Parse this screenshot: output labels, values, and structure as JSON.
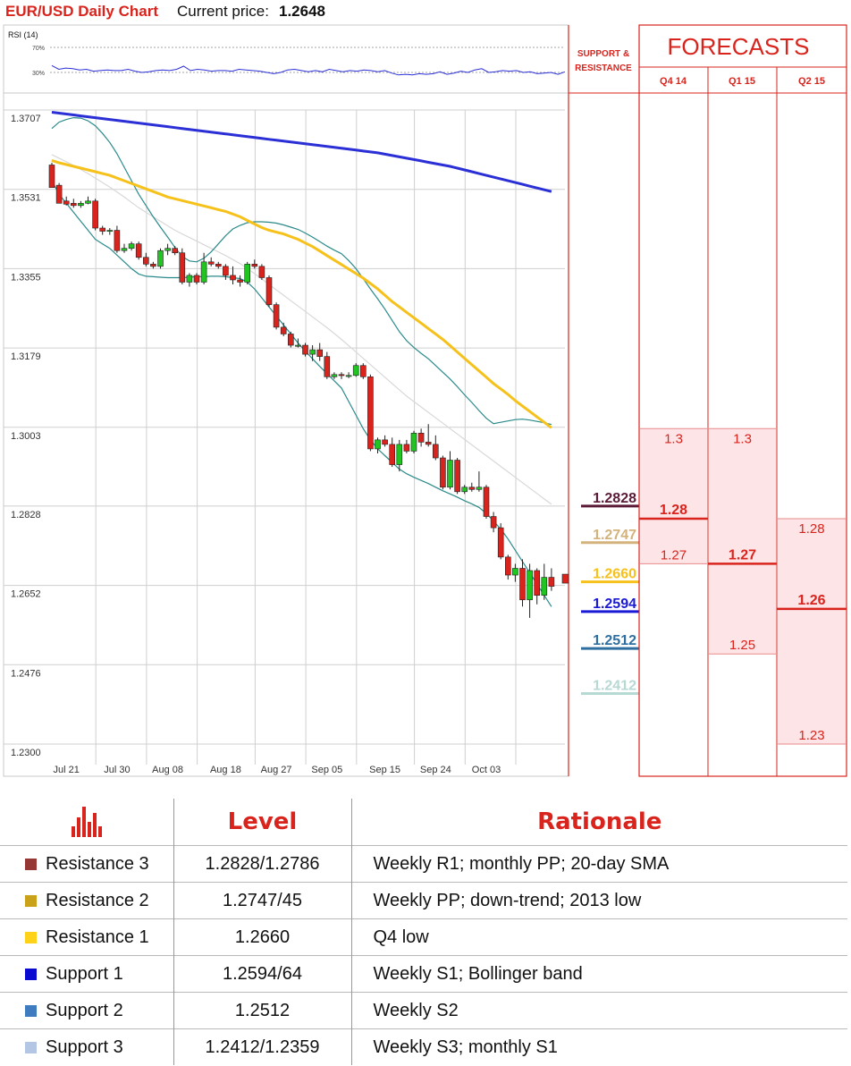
{
  "header": {
    "title": "EUR/USD Daily Chart",
    "price_label": "Current price:",
    "price_value": "1.2648"
  },
  "colors": {
    "accent": "#d9241d",
    "sma200": "#2b2fd6",
    "sma50": "#f5c11a",
    "bollinger": "#2a8a8a",
    "sma20": "#d8d8d8",
    "bull_candle": "#22c422",
    "bear_candle": "#d9241d",
    "forecast_fill": "#fde4e6"
  },
  "chart_data": [
    {
      "type": "line",
      "title": "RSI (14)",
      "ylim": [
        0,
        100
      ],
      "ref_lines": [
        70,
        30
      ],
      "ref_labels": [
        "70%",
        "30%"
      ],
      "series": [
        {
          "values": [
            41,
            35,
            37,
            36,
            34,
            35,
            32,
            33,
            34,
            33,
            33,
            35,
            32,
            30,
            31,
            33,
            34,
            33,
            35,
            40,
            33,
            35,
            34,
            32,
            33,
            33,
            32,
            35,
            34,
            33,
            32,
            30,
            28,
            30,
            34,
            35,
            33,
            31,
            33,
            31,
            35,
            33,
            31,
            33,
            32,
            34,
            33,
            31,
            33,
            29,
            26,
            27,
            26,
            28,
            27,
            28,
            31,
            27,
            29,
            32,
            30,
            34,
            36,
            30,
            31,
            33,
            32,
            33,
            30,
            31,
            28,
            29,
            30,
            27,
            31
          ]
        }
      ]
    },
    {
      "type": "candlestick",
      "ylim": [
        1.23,
        1.3707
      ],
      "y_ticks": [
        "1.3707",
        "1.3531",
        "1.3355",
        "1.3179",
        "1.3003",
        "1.2828",
        "1.2652",
        "1.2476",
        "1.2300"
      ],
      "x_ticks": [
        "Jul 21",
        "Jul 30",
        "Aug 08",
        "Aug 18",
        "Aug 27",
        "Sep 05",
        "Sep 15",
        "Sep 24",
        "Oct 03"
      ],
      "x_tick_index": [
        2,
        9,
        16,
        24,
        31,
        38,
        46,
        53,
        60
      ],
      "candles": [
        [
          1.3585,
          1.359,
          1.354,
          1.3535
        ],
        [
          1.354,
          1.3545,
          1.3505,
          1.35
        ],
        [
          1.3505,
          1.3515,
          1.3495,
          1.3498
        ],
        [
          1.35,
          1.351,
          1.349,
          1.3495
        ],
        [
          1.3495,
          1.3505,
          1.349,
          1.35
        ],
        [
          1.35,
          1.3515,
          1.3498,
          1.3505
        ],
        [
          1.3505,
          1.351,
          1.344,
          1.3445
        ],
        [
          1.3445,
          1.345,
          1.343,
          1.3438
        ],
        [
          1.3438,
          1.3445,
          1.343,
          1.344
        ],
        [
          1.344,
          1.345,
          1.339,
          1.3395
        ],
        [
          1.3395,
          1.341,
          1.339,
          1.34
        ],
        [
          1.34,
          1.3415,
          1.3395,
          1.341
        ],
        [
          1.341,
          1.3415,
          1.3375,
          1.338
        ],
        [
          1.338,
          1.339,
          1.336,
          1.3365
        ],
        [
          1.3365,
          1.337,
          1.3355,
          1.336
        ],
        [
          1.336,
          1.34,
          1.3355,
          1.3395
        ],
        [
          1.3395,
          1.341,
          1.3385,
          1.34
        ],
        [
          1.34,
          1.3405,
          1.3385,
          1.339
        ],
        [
          1.339,
          1.34,
          1.332,
          1.3325
        ],
        [
          1.3325,
          1.3345,
          1.3315,
          1.334
        ],
        [
          1.334,
          1.3345,
          1.332,
          1.3325
        ],
        [
          1.3325,
          1.339,
          1.332,
          1.337
        ],
        [
          1.337,
          1.338,
          1.336,
          1.3365
        ],
        [
          1.3365,
          1.337,
          1.3355,
          1.336
        ],
        [
          1.336,
          1.3365,
          1.333,
          1.334
        ],
        [
          1.334,
          1.336,
          1.332,
          1.333
        ],
        [
          1.333,
          1.334,
          1.3315,
          1.3325
        ],
        [
          1.3325,
          1.337,
          1.332,
          1.3365
        ],
        [
          1.3365,
          1.3375,
          1.3355,
          1.336
        ],
        [
          1.336,
          1.3365,
          1.333,
          1.3335
        ],
        [
          1.3335,
          1.334,
          1.327,
          1.3275
        ],
        [
          1.3275,
          1.328,
          1.322,
          1.3225
        ],
        [
          1.3225,
          1.3235,
          1.3205,
          1.321
        ],
        [
          1.321,
          1.3215,
          1.318,
          1.3185
        ],
        [
          1.3185,
          1.32,
          1.318,
          1.3185
        ],
        [
          1.3185,
          1.319,
          1.316,
          1.3165
        ],
        [
          1.3165,
          1.3185,
          1.315,
          1.3175
        ],
        [
          1.3175,
          1.319,
          1.315,
          1.316
        ],
        [
          1.316,
          1.317,
          1.311,
          1.3115
        ],
        [
          1.3115,
          1.3125,
          1.311,
          1.312
        ],
        [
          1.312,
          1.3125,
          1.311,
          1.3118
        ],
        [
          1.3118,
          1.3125,
          1.3112,
          1.3118
        ],
        [
          1.3118,
          1.3145,
          1.3115,
          1.314
        ],
        [
          1.314,
          1.3145,
          1.311,
          1.3115
        ],
        [
          1.3115,
          1.312,
          1.295,
          1.2955
        ],
        [
          1.2955,
          1.298,
          1.2945,
          1.2975
        ],
        [
          1.2975,
          1.2985,
          1.296,
          1.2965
        ],
        [
          1.2965,
          1.298,
          1.2915,
          1.292
        ],
        [
          1.292,
          1.2975,
          1.2905,
          1.2965
        ],
        [
          1.2965,
          1.2975,
          1.2945,
          1.295
        ],
        [
          1.295,
          1.2995,
          1.2945,
          1.299
        ],
        [
          1.299,
          1.3,
          1.296,
          1.297
        ],
        [
          1.297,
          1.301,
          1.296,
          1.2965
        ],
        [
          1.2965,
          1.2985,
          1.293,
          1.2935
        ],
        [
          1.2935,
          1.294,
          1.2865,
          1.287
        ],
        [
          1.287,
          1.295,
          1.2865,
          1.293
        ],
        [
          1.293,
          1.2935,
          1.2855,
          1.286
        ],
        [
          1.286,
          1.2875,
          1.2855,
          1.287
        ],
        [
          1.287,
          1.288,
          1.286,
          1.2865
        ],
        [
          1.2865,
          1.2905,
          1.286,
          1.287
        ],
        [
          1.287,
          1.2875,
          1.28,
          1.2805
        ],
        [
          1.2805,
          1.2815,
          1.277,
          1.278
        ],
        [
          1.278,
          1.279,
          1.271,
          1.2715
        ],
        [
          1.2715,
          1.272,
          1.2665,
          1.2675
        ],
        [
          1.2675,
          1.27,
          1.266,
          1.269
        ],
        [
          1.269,
          1.271,
          1.2605,
          1.262
        ],
        [
          1.262,
          1.27,
          1.258,
          1.2685
        ],
        [
          1.2685,
          1.269,
          1.261,
          1.263
        ],
        [
          1.263,
          1.27,
          1.262,
          1.267
        ],
        [
          1.267,
          1.269,
          1.264,
          1.265
        ]
      ],
      "overlays": {
        "sma200": [
          1.3702,
          1.37,
          1.3698,
          1.3696,
          1.3694,
          1.3692,
          1.369,
          1.3688,
          1.3686,
          1.3684,
          1.3682,
          1.368,
          1.3678,
          1.3676,
          1.3674,
          1.3672,
          1.367,
          1.3668,
          1.3666,
          1.3664,
          1.3662,
          1.366,
          1.3658,
          1.3656,
          1.3654,
          1.3652,
          1.365,
          1.3648,
          1.3646,
          1.3644,
          1.3642,
          1.364,
          1.3638,
          1.3636,
          1.3634,
          1.3632,
          1.363,
          1.3628,
          1.3626,
          1.3624,
          1.3622,
          1.362,
          1.3618,
          1.3616,
          1.3614,
          1.3612,
          1.3609,
          1.3606,
          1.3603,
          1.36,
          1.3597,
          1.3594,
          1.3591,
          1.3588,
          1.3585,
          1.3582,
          1.3578,
          1.3574,
          1.357,
          1.3566,
          1.3562,
          1.3558,
          1.3554,
          1.355,
          1.3546,
          1.3542,
          1.3538,
          1.3534,
          1.353,
          1.3526
        ],
        "sma50": [
          1.3595,
          1.359,
          1.3586,
          1.3582,
          1.3578,
          1.3574,
          1.357,
          1.3566,
          1.3562,
          1.3556,
          1.355,
          1.3544,
          1.3538,
          1.3532,
          1.3526,
          1.352,
          1.3514,
          1.351,
          1.3506,
          1.3502,
          1.3498,
          1.3494,
          1.349,
          1.3486,
          1.3482,
          1.3476,
          1.347,
          1.3462,
          1.3454,
          1.3446,
          1.344,
          1.3436,
          1.3432,
          1.3426,
          1.342,
          1.3412,
          1.3404,
          1.3394,
          1.3384,
          1.3374,
          1.3364,
          1.3354,
          1.3344,
          1.3334,
          1.3322,
          1.331,
          1.3296,
          1.3282,
          1.327,
          1.3258,
          1.3246,
          1.3234,
          1.3222,
          1.321,
          1.3198,
          1.3184,
          1.317,
          1.3156,
          1.3142,
          1.3128,
          1.3114,
          1.31,
          1.3088,
          1.3076,
          1.3062,
          1.305,
          1.3038,
          1.3026,
          1.3014,
          1.3002
        ],
        "bb_upper": [
          1.3666,
          1.368,
          1.3686,
          1.369,
          1.3689,
          1.3683,
          1.3672,
          1.3655,
          1.3635,
          1.361,
          1.358,
          1.355,
          1.352,
          1.3495,
          1.347,
          1.3447,
          1.3425,
          1.3402,
          1.3382,
          1.3372,
          1.337,
          1.3378,
          1.3392,
          1.341,
          1.3428,
          1.3443,
          1.3451,
          1.3457,
          1.3459,
          1.3459,
          1.3458,
          1.3456,
          1.3452,
          1.3447,
          1.3442,
          1.3434,
          1.3425,
          1.3415,
          1.3405,
          1.3396,
          1.3388,
          1.3373,
          1.3355,
          1.3333,
          1.331,
          1.3288,
          1.3265,
          1.324,
          1.3215,
          1.3195,
          1.318,
          1.3167,
          1.3155,
          1.314,
          1.3125,
          1.311,
          1.3093,
          1.3075,
          1.3058,
          1.304,
          1.3023,
          1.3011,
          1.3014,
          1.3017,
          1.302,
          1.3021,
          1.3019,
          1.3016,
          1.3013,
          1.3009
        ],
        "bb_lower": [
          1.355,
          1.352,
          1.35,
          1.348,
          1.346,
          1.344,
          1.342,
          1.341,
          1.34,
          1.3385,
          1.337,
          1.3355,
          1.3343,
          1.3338,
          1.3337,
          1.3336,
          1.3335,
          1.3335,
          1.3335,
          1.3336,
          1.3337,
          1.3337,
          1.3338,
          1.3338,
          1.3337,
          1.3335,
          1.3333,
          1.3325,
          1.331,
          1.329,
          1.327,
          1.325,
          1.323,
          1.321,
          1.319,
          1.3172,
          1.3155,
          1.3138,
          1.3122,
          1.3106,
          1.309,
          1.306,
          1.303,
          1.3,
          1.2975,
          1.2955,
          1.294,
          1.2925,
          1.291,
          1.29,
          1.2892,
          1.2885,
          1.2878,
          1.287,
          1.2862,
          1.2855,
          1.2848,
          1.284,
          1.2833,
          1.2825,
          1.2812,
          1.2795,
          1.2777,
          1.2755,
          1.273,
          1.2705,
          1.268,
          1.2655,
          1.263,
          1.2605
        ],
        "sma20": [
          1.3608,
          1.36,
          1.3592,
          1.3584,
          1.3575,
          1.3566,
          1.3556,
          1.3546,
          1.3536,
          1.3525,
          1.3514,
          1.3502,
          1.349,
          1.348,
          1.347,
          1.346,
          1.345,
          1.344,
          1.3432,
          1.3424,
          1.3416,
          1.3408,
          1.34,
          1.3392,
          1.3384,
          1.3375,
          1.3366,
          1.3355,
          1.3344,
          1.3332,
          1.332,
          1.3308,
          1.3296,
          1.3284,
          1.3272,
          1.326,
          1.3248,
          1.3236,
          1.3224,
          1.3211,
          1.3198,
          1.3184,
          1.317,
          1.3156,
          1.3142,
          1.3128,
          1.3114,
          1.31,
          1.3086,
          1.3072,
          1.306,
          1.3048,
          1.3036,
          1.3024,
          1.3012,
          1.3,
          1.2988,
          1.2976,
          1.2964,
          1.2952,
          1.294,
          1.2928,
          1.2916,
          1.2904,
          1.2892,
          1.288,
          1.2868,
          1.2856,
          1.2844,
          1.2832
        ]
      }
    }
  ],
  "support_resistance": {
    "header": [
      "SUPPORT &",
      "RESISTANCE"
    ],
    "levels": [
      {
        "value": 1.2828,
        "label": "1.2828",
        "color": "#5b1a37"
      },
      {
        "value": 1.2747,
        "label": "1.2747",
        "color": "#d3b27c"
      },
      {
        "value": 1.266,
        "label": "1.2660",
        "color": "#f5c11a"
      },
      {
        "value": 1.2594,
        "label": "1.2594",
        "color": "#1a1ad6"
      },
      {
        "value": 1.2512,
        "label": "1.2512",
        "color": "#2f6f9f"
      },
      {
        "value": 1.2412,
        "label": "1.2412",
        "color": "#b7d9d4"
      }
    ]
  },
  "forecasts": {
    "title": "FORECASTS",
    "columns": [
      {
        "label": "Q4 14",
        "high": 1.3,
        "mid": 1.28,
        "low": 1.27,
        "high_label": "1.3",
        "mid_label": "1.28",
        "low_label": "1.27"
      },
      {
        "label": "Q1 15",
        "high": 1.3,
        "mid": 1.27,
        "low": 1.25,
        "high_label": "1.3",
        "mid_label": "1.27",
        "low_label": "1.25"
      },
      {
        "label": "Q2 15",
        "high": 1.28,
        "mid": 1.26,
        "low": 1.23,
        "high_label": "1.28",
        "mid_label": "1.26",
        "low_label": "1.23"
      }
    ]
  },
  "table": {
    "col_level": "Level",
    "col_rationale": "Rationale",
    "rows": [
      {
        "name": "Resistance 3",
        "color": "#953735",
        "level": "1.2828/1.2786",
        "rationale": "Weekly R1; monthly PP; 20-day SMA"
      },
      {
        "name": "Resistance 2",
        "color": "#c9a21a",
        "level": "1.2747/45",
        "rationale": "Weekly PP; down-trend; 2013 low"
      },
      {
        "name": "Resistance 1",
        "color": "#ffd21a",
        "level": "1.2660",
        "rationale": "Q4 low"
      },
      {
        "name": "Support 1",
        "color": "#0a0ad0",
        "level": "1.2594/64",
        "rationale": "Weekly S1; Bollinger band"
      },
      {
        "name": "Support 2",
        "color": "#3f7bbf",
        "level": "1.2512",
        "rationale": "Weekly S2"
      },
      {
        "name": "Support 3",
        "color": "#b3c6e4",
        "level": "1.2412/1.2359",
        "rationale": "Weekly S3; monthly S1"
      }
    ]
  }
}
